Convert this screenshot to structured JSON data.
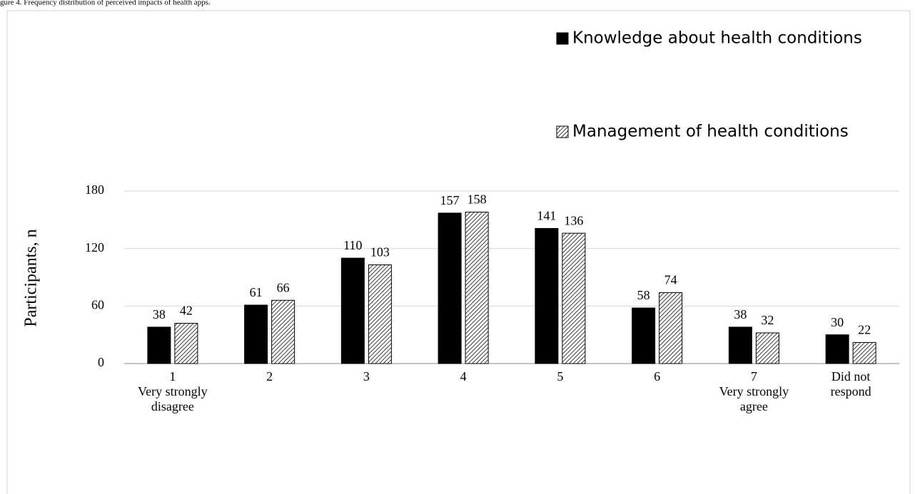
{
  "chart_data": {
    "type": "bar",
    "caption": "gure 4. Frequency distribution of perceived impacts of health apps.",
    "y_label": "Participants, n",
    "categories": [
      [
        "1",
        "Very strongly",
        "disagree"
      ],
      [
        "2"
      ],
      [
        "3"
      ],
      [
        "4"
      ],
      [
        "5"
      ],
      [
        "6"
      ],
      [
        "7",
        "Very strongly",
        "agree"
      ],
      [
        "Did not",
        "respond"
      ]
    ],
    "series": [
      {
        "name": "Knowledge about health conditions",
        "color": "#000000",
        "fill": "solid",
        "values": [
          38,
          61,
          110,
          157,
          141,
          58,
          38,
          30
        ]
      },
      {
        "name": "Management of health conditions",
        "color": "#000000",
        "fill": "hatch",
        "values": [
          42,
          66,
          103,
          158,
          136,
          74,
          32,
          22
        ]
      }
    ],
    "ylim": [
      0,
      180
    ],
    "yticks": [
      0,
      60,
      120,
      180
    ],
    "grid": true,
    "legend": "top-right"
  }
}
